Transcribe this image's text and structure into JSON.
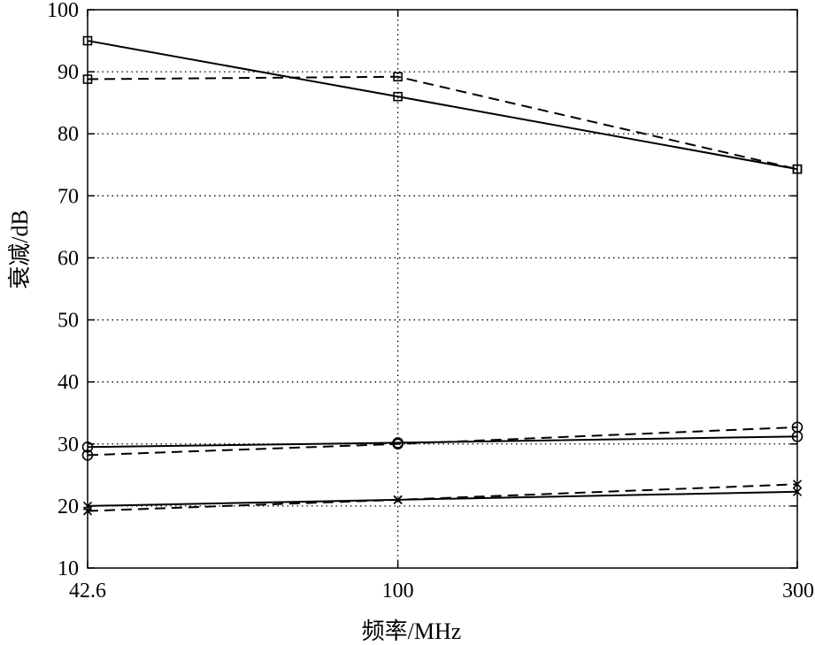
{
  "chart_data": {
    "type": "line",
    "xlabel": "频率/MHz",
    "ylabel": "衰减/dB",
    "xscale": "log",
    "x": [
      42.6,
      100,
      300
    ],
    "xticks": [
      "42.6",
      "100",
      "300"
    ],
    "ylim": [
      10,
      100
    ],
    "yticks": [
      10,
      20,
      30,
      40,
      50,
      60,
      70,
      80,
      90,
      100
    ],
    "grid": true,
    "series": [
      {
        "marker": "square",
        "linestyle": "solid",
        "values": [
          95,
          86,
          74.3
        ]
      },
      {
        "marker": "square",
        "linestyle": "dashed",
        "values": [
          88.8,
          89.2,
          74.3
        ]
      },
      {
        "marker": "circle",
        "linestyle": "solid",
        "values": [
          29.5,
          30.2,
          31.2
        ]
      },
      {
        "marker": "circle",
        "linestyle": "dashed",
        "values": [
          28.2,
          30,
          32.7
        ]
      },
      {
        "marker": "x",
        "linestyle": "solid",
        "values": [
          20,
          21,
          22.3
        ]
      },
      {
        "marker": "x",
        "linestyle": "dashed",
        "values": [
          19.2,
          21,
          23.5
        ]
      }
    ]
  }
}
